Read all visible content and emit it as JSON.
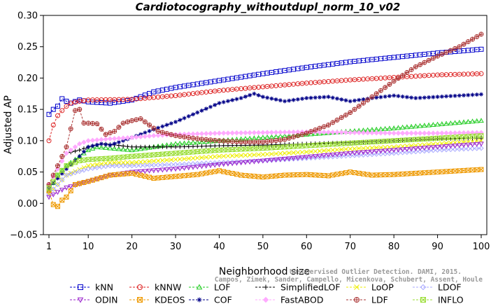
{
  "chart_data": {
    "type": "line",
    "title": "Cardiotocography_withoutdupl_norm_10_v02",
    "xlabel": "Neighborhood size",
    "ylabel": "Adjusted AP",
    "xlim": [
      1,
      100
    ],
    "ylim": [
      -0.05,
      0.3
    ],
    "xticks": [
      1,
      10,
      20,
      30,
      40,
      50,
      60,
      70,
      80,
      90,
      100
    ],
    "yticks": [
      -0.05,
      0.0,
      0.05,
      0.1,
      0.15,
      0.2,
      0.25,
      0.3
    ],
    "ytick_labels": [
      "−0.05",
      "0.00",
      "0.05",
      "0.10",
      "0.15",
      "0.20",
      "0.25",
      "0.30"
    ],
    "grid": false,
    "legend_position": "bottom",
    "watermark": [
      "Campos, Zimek, Sander, Campello, Micenkova, Schubert, Assent, Houle",
      "Unsupervised Outlier Detection. DAMI, 2015."
    ],
    "series": [
      {
        "name": "kNN",
        "color": "#0000cc",
        "marker": "square",
        "points": [
          [
            1,
            0.142
          ],
          [
            2,
            0.15
          ],
          [
            3,
            0.155
          ],
          [
            4,
            0.167
          ],
          [
            5,
            0.163
          ],
          [
            6,
            0.16
          ],
          [
            8,
            0.165
          ],
          [
            10,
            0.162
          ],
          [
            15,
            0.16
          ],
          [
            20,
            0.165
          ],
          [
            25,
            0.178
          ],
          [
            30,
            0.185
          ],
          [
            40,
            0.196
          ],
          [
            50,
            0.207
          ],
          [
            60,
            0.217
          ],
          [
            70,
            0.226
          ],
          [
            80,
            0.233
          ],
          [
            90,
            0.24
          ],
          [
            100,
            0.246
          ]
        ]
      },
      {
        "name": "kNNW",
        "color": "#dd2222",
        "marker": "circle",
        "points": [
          [
            1,
            0.1
          ],
          [
            2,
            0.125
          ],
          [
            3,
            0.14
          ],
          [
            4,
            0.148
          ],
          [
            5,
            0.155
          ],
          [
            6,
            0.16
          ],
          [
            8,
            0.163
          ],
          [
            10,
            0.165
          ],
          [
            20,
            0.166
          ],
          [
            30,
            0.172
          ],
          [
            40,
            0.18
          ],
          [
            50,
            0.186
          ],
          [
            60,
            0.192
          ],
          [
            70,
            0.197
          ],
          [
            80,
            0.201
          ],
          [
            90,
            0.205
          ],
          [
            100,
            0.207
          ]
        ]
      },
      {
        "name": "LOF",
        "color": "#22cc22",
        "marker": "triangle-up",
        "points": [
          [
            1,
            0.02
          ],
          [
            3,
            0.045
          ],
          [
            5,
            0.06
          ],
          [
            8,
            0.075
          ],
          [
            10,
            0.085
          ],
          [
            12,
            0.09
          ],
          [
            15,
            0.088
          ],
          [
            20,
            0.085
          ],
          [
            25,
            0.09
          ],
          [
            30,
            0.095
          ],
          [
            40,
            0.1
          ],
          [
            50,
            0.105
          ],
          [
            60,
            0.11
          ],
          [
            70,
            0.115
          ],
          [
            80,
            0.12
          ],
          [
            90,
            0.126
          ],
          [
            100,
            0.132
          ]
        ]
      },
      {
        "name": "SimplifiedLOF",
        "color": "#000000",
        "marker": "plus",
        "points": [
          [
            1,
            0.03
          ],
          [
            3,
            0.055
          ],
          [
            5,
            0.08
          ],
          [
            8,
            0.085
          ],
          [
            10,
            0.09
          ],
          [
            13,
            0.095
          ],
          [
            15,
            0.094
          ],
          [
            20,
            0.09
          ],
          [
            30,
            0.09
          ],
          [
            40,
            0.092
          ],
          [
            50,
            0.093
          ],
          [
            60,
            0.095
          ],
          [
            70,
            0.097
          ],
          [
            80,
            0.1
          ],
          [
            90,
            0.103
          ],
          [
            100,
            0.104
          ]
        ]
      },
      {
        "name": "LoOP",
        "color": "#eeee00",
        "marker": "x",
        "points": [
          [
            1,
            0.015
          ],
          [
            3,
            0.03
          ],
          [
            5,
            0.045
          ],
          [
            10,
            0.06
          ],
          [
            15,
            0.065
          ],
          [
            20,
            0.065
          ],
          [
            30,
            0.07
          ],
          [
            40,
            0.075
          ],
          [
            50,
            0.078
          ],
          [
            60,
            0.082
          ],
          [
            70,
            0.087
          ],
          [
            80,
            0.09
          ],
          [
            90,
            0.095
          ],
          [
            100,
            0.1
          ]
        ]
      },
      {
        "name": "LDOF",
        "color": "#aaaaff",
        "marker": "diamond",
        "points": [
          [
            1,
            0.015
          ],
          [
            3,
            0.03
          ],
          [
            5,
            0.045
          ],
          [
            10,
            0.055
          ],
          [
            15,
            0.06
          ],
          [
            20,
            0.06
          ],
          [
            30,
            0.062
          ],
          [
            40,
            0.065
          ],
          [
            50,
            0.068
          ],
          [
            60,
            0.072
          ],
          [
            70,
            0.076
          ],
          [
            80,
            0.08
          ],
          [
            90,
            0.085
          ],
          [
            100,
            0.088
          ]
        ]
      },
      {
        "name": "ODIN",
        "color": "#9922cc",
        "marker": "triangle-down",
        "points": [
          [
            1,
            0.01
          ],
          [
            3,
            0.018
          ],
          [
            5,
            0.025
          ],
          [
            10,
            0.035
          ],
          [
            15,
            0.045
          ],
          [
            20,
            0.05
          ],
          [
            30,
            0.055
          ],
          [
            40,
            0.062
          ],
          [
            50,
            0.068
          ],
          [
            60,
            0.074
          ],
          [
            70,
            0.08
          ],
          [
            80,
            0.085
          ],
          [
            90,
            0.09
          ],
          [
            100,
            0.095
          ]
        ]
      },
      {
        "name": "KDEOS",
        "color": "#ee9900",
        "marker": "square-x",
        "points": [
          [
            1,
            0.02
          ],
          [
            2,
            -0.002
          ],
          [
            3,
            -0.005
          ],
          [
            4,
            0.005
          ],
          [
            5,
            0.01
          ],
          [
            7,
            0.03
          ],
          [
            10,
            0.035
          ],
          [
            15,
            0.045
          ],
          [
            20,
            0.048
          ],
          [
            25,
            0.04
          ],
          [
            30,
            0.043
          ],
          [
            35,
            0.046
          ],
          [
            40,
            0.052
          ],
          [
            45,
            0.045
          ],
          [
            50,
            0.042
          ],
          [
            55,
            0.045
          ],
          [
            60,
            0.046
          ],
          [
            65,
            0.044
          ],
          [
            70,
            0.05
          ],
          [
            75,
            0.045
          ],
          [
            80,
            0.046
          ],
          [
            85,
            0.048
          ],
          [
            90,
            0.05
          ],
          [
            95,
            0.052
          ],
          [
            100,
            0.054
          ]
        ]
      },
      {
        "name": "COF",
        "color": "#000088",
        "marker": "star",
        "points": [
          [
            1,
            0.025
          ],
          [
            3,
            0.04
          ],
          [
            5,
            0.055
          ],
          [
            8,
            0.075
          ],
          [
            10,
            0.09
          ],
          [
            13,
            0.095
          ],
          [
            15,
            0.093
          ],
          [
            18,
            0.1
          ],
          [
            20,
            0.105
          ],
          [
            25,
            0.118
          ],
          [
            30,
            0.13
          ],
          [
            35,
            0.145
          ],
          [
            40,
            0.16
          ],
          [
            45,
            0.168
          ],
          [
            48,
            0.175
          ],
          [
            50,
            0.17
          ],
          [
            55,
            0.163
          ],
          [
            60,
            0.168
          ],
          [
            65,
            0.17
          ],
          [
            70,
            0.163
          ],
          [
            75,
            0.168
          ],
          [
            80,
            0.172
          ],
          [
            85,
            0.168
          ],
          [
            90,
            0.17
          ],
          [
            95,
            0.172
          ],
          [
            100,
            0.174
          ]
        ]
      },
      {
        "name": "FastABOD",
        "color": "#ffaaff",
        "marker": "diamond-filled",
        "points": [
          [
            1,
            0.03
          ],
          [
            3,
            0.055
          ],
          [
            5,
            0.08
          ],
          [
            8,
            0.095
          ],
          [
            10,
            0.1
          ],
          [
            15,
            0.103
          ],
          [
            20,
            0.105
          ],
          [
            25,
            0.108
          ],
          [
            30,
            0.11
          ],
          [
            40,
            0.112
          ],
          [
            50,
            0.113
          ],
          [
            60,
            0.114
          ],
          [
            70,
            0.113
          ],
          [
            80,
            0.112
          ],
          [
            90,
            0.112
          ],
          [
            100,
            0.113
          ]
        ]
      },
      {
        "name": "LDF",
        "color": "#aa3333",
        "marker": "circle-plus",
        "points": [
          [
            1,
            0.03
          ],
          [
            3,
            0.06
          ],
          [
            5,
            0.09
          ],
          [
            7,
            0.148
          ],
          [
            8,
            0.15
          ],
          [
            9,
            0.128
          ],
          [
            10,
            0.128
          ],
          [
            12,
            0.127
          ],
          [
            14,
            0.11
          ],
          [
            16,
            0.115
          ],
          [
            18,
            0.128
          ],
          [
            20,
            0.132
          ],
          [
            22,
            0.135
          ],
          [
            24,
            0.125
          ],
          [
            26,
            0.115
          ],
          [
            30,
            0.108
          ],
          [
            35,
            0.103
          ],
          [
            40,
            0.1
          ],
          [
            45,
            0.098
          ],
          [
            50,
            0.098
          ],
          [
            55,
            0.102
          ],
          [
            60,
            0.112
          ],
          [
            65,
            0.125
          ],
          [
            70,
            0.145
          ],
          [
            75,
            0.17
          ],
          [
            80,
            0.195
          ],
          [
            85,
            0.218
          ],
          [
            90,
            0.235
          ],
          [
            95,
            0.25
          ],
          [
            100,
            0.27
          ]
        ]
      },
      {
        "name": "INFLO",
        "color": "#99dd33",
        "marker": "square-x",
        "points": [
          [
            1,
            0.025
          ],
          [
            3,
            0.045
          ],
          [
            5,
            0.06
          ],
          [
            8,
            0.068
          ],
          [
            10,
            0.07
          ],
          [
            15,
            0.072
          ],
          [
            20,
            0.075
          ],
          [
            30,
            0.08
          ],
          [
            40,
            0.085
          ],
          [
            50,
            0.088
          ],
          [
            60,
            0.092
          ],
          [
            70,
            0.096
          ],
          [
            80,
            0.1
          ],
          [
            90,
            0.104
          ],
          [
            100,
            0.108
          ]
        ]
      }
    ]
  }
}
